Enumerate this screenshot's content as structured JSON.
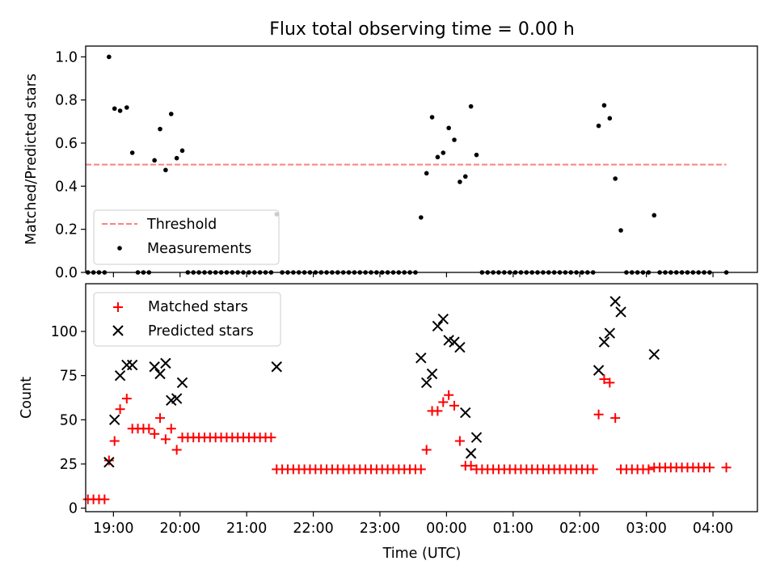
{
  "chart_data": [
    {
      "type": "scatter",
      "title": "Flux total observing time = 0.00 h",
      "ylabel": "Matched/Predicted stars",
      "ylim": [
        0,
        1.05
      ],
      "yticks": [
        "0.0",
        "0.2",
        "0.4",
        "0.6",
        "0.8",
        "1.0"
      ],
      "xlim": [
        "18:35",
        "04:40"
      ],
      "grid": false,
      "legend": "lower-left",
      "threshold": {
        "name": "Threshold",
        "y": 0.5,
        "x": [
          "18:35",
          "04:12"
        ],
        "color": "#ff8080",
        "style": "dashed"
      },
      "series": [
        {
          "name": "Measurements",
          "color": "#000000",
          "marker": "dot",
          "points": [
            [
              "18:37",
              0
            ],
            [
              "18:42",
              0
            ],
            [
              "18:47",
              0
            ],
            [
              "18:52",
              0
            ],
            [
              "18:56",
              1.0
            ],
            [
              "19:01",
              0.76
            ],
            [
              "19:06",
              0.75
            ],
            [
              "19:12",
              0.765
            ],
            [
              "19:17",
              0.555
            ],
            [
              "19:22",
              0
            ],
            [
              "19:27",
              0
            ],
            [
              "19:32",
              0
            ],
            [
              "19:37",
              0.52
            ],
            [
              "19:42",
              0.665
            ],
            [
              "19:47",
              0.475
            ],
            [
              "19:52",
              0.735
            ],
            [
              "19:57",
              0.53
            ],
            [
              "20:02",
              0.565
            ],
            [
              "20:07",
              0
            ],
            [
              "20:12",
              0
            ],
            [
              "20:17",
              0
            ],
            [
              "20:22",
              0
            ],
            [
              "20:27",
              0
            ],
            [
              "20:32",
              0
            ],
            [
              "20:37",
              0
            ],
            [
              "20:42",
              0
            ],
            [
              "20:47",
              0
            ],
            [
              "20:52",
              0
            ],
            [
              "20:57",
              0
            ],
            [
              "21:02",
              0
            ],
            [
              "21:07",
              0
            ],
            [
              "21:12",
              0
            ],
            [
              "21:17",
              0
            ],
            [
              "21:22",
              0
            ],
            [
              "21:27",
              0.27
            ],
            [
              "21:32",
              0
            ],
            [
              "21:37",
              0
            ],
            [
              "21:42",
              0
            ],
            [
              "21:47",
              0
            ],
            [
              "21:52",
              0
            ],
            [
              "21:57",
              0
            ],
            [
              "22:02",
              0
            ],
            [
              "22:07",
              0
            ],
            [
              "22:12",
              0
            ],
            [
              "22:17",
              0
            ],
            [
              "22:22",
              0
            ],
            [
              "22:27",
              0
            ],
            [
              "22:32",
              0
            ],
            [
              "22:37",
              0
            ],
            [
              "22:42",
              0
            ],
            [
              "22:47",
              0
            ],
            [
              "22:52",
              0
            ],
            [
              "22:57",
              0
            ],
            [
              "23:02",
              0
            ],
            [
              "23:07",
              0
            ],
            [
              "23:12",
              0
            ],
            [
              "23:17",
              0
            ],
            [
              "23:22",
              0
            ],
            [
              "23:27",
              0
            ],
            [
              "23:32",
              0
            ],
            [
              "23:37",
              0.255
            ],
            [
              "23:42",
              0.46
            ],
            [
              "23:47",
              0.72
            ],
            [
              "23:52",
              0.535
            ],
            [
              "23:57",
              0.555
            ],
            [
              "00:02",
              0.67
            ],
            [
              "00:07",
              0.615
            ],
            [
              "00:12",
              0.42
            ],
            [
              "00:17",
              0.445
            ],
            [
              "00:22",
              0.77
            ],
            [
              "00:27",
              0.545
            ],
            [
              "00:32",
              0
            ],
            [
              "00:37",
              0
            ],
            [
              "00:42",
              0
            ],
            [
              "00:47",
              0
            ],
            [
              "00:52",
              0
            ],
            [
              "00:57",
              0
            ],
            [
              "01:02",
              0
            ],
            [
              "01:07",
              0
            ],
            [
              "01:12",
              0
            ],
            [
              "01:17",
              0
            ],
            [
              "01:22",
              0
            ],
            [
              "01:27",
              0
            ],
            [
              "01:32",
              0
            ],
            [
              "01:37",
              0
            ],
            [
              "01:42",
              0
            ],
            [
              "01:47",
              0
            ],
            [
              "01:52",
              0
            ],
            [
              "01:57",
              0
            ],
            [
              "02:02",
              0
            ],
            [
              "02:07",
              0
            ],
            [
              "02:12",
              0
            ],
            [
              "02:17",
              0.68
            ],
            [
              "02:22",
              0.775
            ],
            [
              "02:27",
              0.715
            ],
            [
              "02:32",
              0.435
            ],
            [
              "02:37",
              0.195
            ],
            [
              "02:42",
              0
            ],
            [
              "02:47",
              0
            ],
            [
              "02:52",
              0
            ],
            [
              "02:57",
              0
            ],
            [
              "03:02",
              0
            ],
            [
              "03:07",
              0.265
            ],
            [
              "03:12",
              0
            ],
            [
              "03:17",
              0
            ],
            [
              "03:22",
              0
            ],
            [
              "03:27",
              0
            ],
            [
              "03:32",
              0
            ],
            [
              "03:37",
              0
            ],
            [
              "03:42",
              0
            ],
            [
              "03:47",
              0
            ],
            [
              "03:52",
              0
            ],
            [
              "03:57",
              0
            ],
            [
              "04:12",
              0
            ]
          ]
        }
      ]
    },
    {
      "type": "scatter",
      "ylabel": "Count",
      "xlabel": "Time (UTC)",
      "ylim": [
        -2,
        127
      ],
      "yticks": [
        "0",
        "25",
        "50",
        "75",
        "100"
      ],
      "xticks": [
        "19:00",
        "20:00",
        "21:00",
        "22:00",
        "23:00",
        "00:00",
        "01:00",
        "02:00",
        "03:00",
        "04:00"
      ],
      "xlim": [
        "18:35",
        "04:40"
      ],
      "grid": false,
      "legend": "top-left",
      "series": [
        {
          "name": "Matched stars",
          "color": "#ff0000",
          "marker": "plus",
          "points": [
            [
              "18:37",
              5
            ],
            [
              "18:42",
              5
            ],
            [
              "18:47",
              5
            ],
            [
              "18:52",
              5
            ],
            [
              "18:56",
              27
            ],
            [
              "19:01",
              38
            ],
            [
              "19:06",
              56
            ],
            [
              "19:12",
              62
            ],
            [
              "19:17",
              45
            ],
            [
              "19:22",
              45
            ],
            [
              "19:27",
              45
            ],
            [
              "19:32",
              45
            ],
            [
              "19:37",
              42
            ],
            [
              "19:42",
              51
            ],
            [
              "19:47",
              39
            ],
            [
              "19:52",
              45
            ],
            [
              "19:57",
              33
            ],
            [
              "20:02",
              40
            ],
            [
              "20:07",
              40
            ],
            [
              "20:12",
              40
            ],
            [
              "20:17",
              40
            ],
            [
              "20:22",
              40
            ],
            [
              "20:27",
              40
            ],
            [
              "20:32",
              40
            ],
            [
              "20:37",
              40
            ],
            [
              "20:42",
              40
            ],
            [
              "20:47",
              40
            ],
            [
              "20:52",
              40
            ],
            [
              "20:57",
              40
            ],
            [
              "21:02",
              40
            ],
            [
              "21:07",
              40
            ],
            [
              "21:12",
              40
            ],
            [
              "21:17",
              40
            ],
            [
              "21:22",
              40
            ],
            [
              "21:27",
              22
            ],
            [
              "21:32",
              22
            ],
            [
              "21:37",
              22
            ],
            [
              "21:42",
              22
            ],
            [
              "21:47",
              22
            ],
            [
              "21:52",
              22
            ],
            [
              "21:57",
              22
            ],
            [
              "22:02",
              22
            ],
            [
              "22:07",
              22
            ],
            [
              "22:12",
              22
            ],
            [
              "22:17",
              22
            ],
            [
              "22:22",
              22
            ],
            [
              "22:27",
              22
            ],
            [
              "22:32",
              22
            ],
            [
              "22:37",
              22
            ],
            [
              "22:42",
              22
            ],
            [
              "22:47",
              22
            ],
            [
              "22:52",
              22
            ],
            [
              "22:57",
              22
            ],
            [
              "23:02",
              22
            ],
            [
              "23:07",
              22
            ],
            [
              "23:12",
              22
            ],
            [
              "23:17",
              22
            ],
            [
              "23:22",
              22
            ],
            [
              "23:27",
              22
            ],
            [
              "23:32",
              22
            ],
            [
              "23:37",
              22
            ],
            [
              "23:42",
              33
            ],
            [
              "23:47",
              55
            ],
            [
              "23:52",
              55
            ],
            [
              "23:57",
              60
            ],
            [
              "00:02",
              64
            ],
            [
              "00:07",
              58
            ],
            [
              "00:12",
              38
            ],
            [
              "00:17",
              24
            ],
            [
              "00:22",
              24
            ],
            [
              "00:27",
              22
            ],
            [
              "00:32",
              22
            ],
            [
              "00:37",
              22
            ],
            [
              "00:42",
              22
            ],
            [
              "00:47",
              22
            ],
            [
              "00:52",
              22
            ],
            [
              "00:57",
              22
            ],
            [
              "01:02",
              22
            ],
            [
              "01:07",
              22
            ],
            [
              "01:12",
              22
            ],
            [
              "01:17",
              22
            ],
            [
              "01:22",
              22
            ],
            [
              "01:27",
              22
            ],
            [
              "01:32",
              22
            ],
            [
              "01:37",
              22
            ],
            [
              "01:42",
              22
            ],
            [
              "01:47",
              22
            ],
            [
              "01:52",
              22
            ],
            [
              "01:57",
              22
            ],
            [
              "02:02",
              22
            ],
            [
              "02:07",
              22
            ],
            [
              "02:12",
              22
            ],
            [
              "02:17",
              53
            ],
            [
              "02:22",
              73
            ],
            [
              "02:27",
              71
            ],
            [
              "02:32",
              51
            ],
            [
              "02:37",
              22
            ],
            [
              "02:42",
              22
            ],
            [
              "02:47",
              22
            ],
            [
              "02:52",
              22
            ],
            [
              "02:57",
              22
            ],
            [
              "03:02",
              22
            ],
            [
              "03:07",
              23
            ],
            [
              "03:12",
              23
            ],
            [
              "03:17",
              23
            ],
            [
              "03:22",
              23
            ],
            [
              "03:27",
              23
            ],
            [
              "03:32",
              23
            ],
            [
              "03:37",
              23
            ],
            [
              "03:42",
              23
            ],
            [
              "03:47",
              23
            ],
            [
              "03:52",
              23
            ],
            [
              "03:57",
              23
            ],
            [
              "04:12",
              23
            ]
          ]
        },
        {
          "name": "Predicted stars",
          "color": "#000000",
          "marker": "x",
          "points": [
            [
              "18:56",
              26
            ],
            [
              "19:01",
              50
            ],
            [
              "19:06",
              75
            ],
            [
              "19:12",
              81
            ],
            [
              "19:17",
              81
            ],
            [
              "19:37",
              80
            ],
            [
              "19:42",
              76
            ],
            [
              "19:47",
              82
            ],
            [
              "19:52",
              61
            ],
            [
              "19:57",
              62
            ],
            [
              "20:02",
              71
            ],
            [
              "21:27",
              80
            ],
            [
              "23:37",
              85
            ],
            [
              "23:42",
              71
            ],
            [
              "23:47",
              76
            ],
            [
              "23:52",
              103
            ],
            [
              "23:57",
              107
            ],
            [
              "00:02",
              95
            ],
            [
              "00:07",
              94
            ],
            [
              "00:12",
              91
            ],
            [
              "00:17",
              54
            ],
            [
              "00:22",
              31
            ],
            [
              "00:27",
              40
            ],
            [
              "02:17",
              78
            ],
            [
              "02:22",
              94
            ],
            [
              "02:27",
              99
            ],
            [
              "02:32",
              117
            ],
            [
              "02:37",
              111
            ],
            [
              "03:07",
              87
            ]
          ]
        }
      ]
    }
  ]
}
